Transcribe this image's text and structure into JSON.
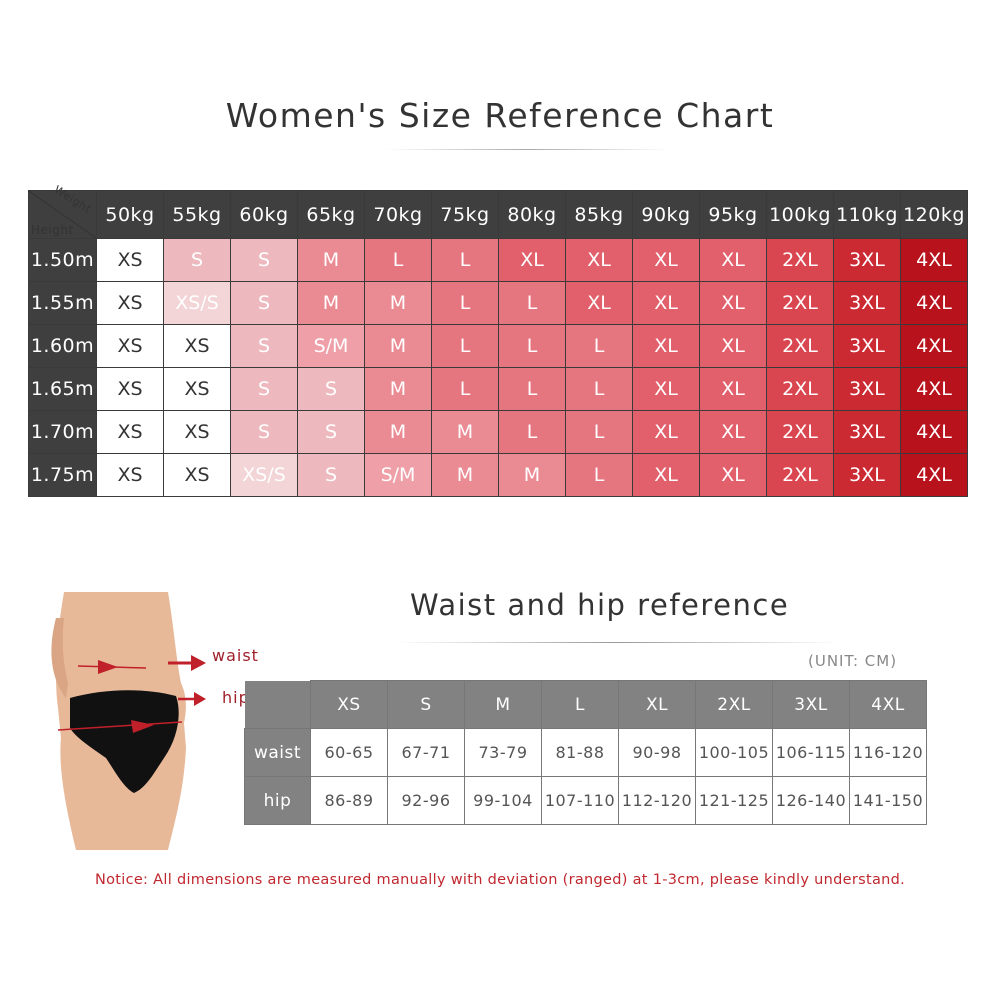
{
  "title": "Women's Size Reference Chart",
  "size_colors": {
    "XS": "#ffffff",
    "XS/S": "#f3d4d7",
    "S": "#eeb9be",
    "S/M": "#ee9fa7",
    "M": "#ea8a93",
    "L": "#e5757f",
    "XL": "#e1606b",
    "2XL": "#da4650",
    "3XL": "#cc2a33",
    "4XL": "#b8131c"
  },
  "chart_data": [
    {
      "type": "table",
      "title": "Women's Size Reference Chart",
      "corner_labels": {
        "columns": "Weight",
        "rows": "Height"
      },
      "columns": [
        "50kg",
        "55kg",
        "60kg",
        "65kg",
        "70kg",
        "75kg",
        "80kg",
        "85kg",
        "90kg",
        "95kg",
        "100kg",
        "110kg",
        "120kg"
      ],
      "rows": [
        {
          "label": "1.50m",
          "values": [
            "XS",
            "S",
            "S",
            "M",
            "L",
            "L",
            "XL",
            "XL",
            "XL",
            "XL",
            "2XL",
            "3XL",
            "4XL"
          ]
        },
        {
          "label": "1.55m",
          "values": [
            "XS",
            "XS/S",
            "S",
            "M",
            "M",
            "L",
            "L",
            "XL",
            "XL",
            "XL",
            "2XL",
            "3XL",
            "4XL"
          ]
        },
        {
          "label": "1.60m",
          "values": [
            "XS",
            "XS",
            "S",
            "S/M",
            "M",
            "L",
            "L",
            "L",
            "XL",
            "XL",
            "2XL",
            "3XL",
            "4XL"
          ]
        },
        {
          "label": "1.65m",
          "values": [
            "XS",
            "XS",
            "S",
            "S",
            "M",
            "L",
            "L",
            "L",
            "XL",
            "XL",
            "2XL",
            "3XL",
            "4XL"
          ]
        },
        {
          "label": "1.70m",
          "values": [
            "XS",
            "XS",
            "S",
            "S",
            "M",
            "M",
            "L",
            "L",
            "XL",
            "XL",
            "2XL",
            "3XL",
            "4XL"
          ]
        },
        {
          "label": "1.75m",
          "values": [
            "XS",
            "XS",
            "XS/S",
            "S",
            "S/M",
            "M",
            "M",
            "L",
            "XL",
            "XL",
            "2XL",
            "3XL",
            "4XL"
          ]
        }
      ]
    },
    {
      "type": "table",
      "title": "Waist and hip reference",
      "unit": "(UNIT: CM)",
      "columns": [
        "XS",
        "S",
        "M",
        "L",
        "XL",
        "2XL",
        "3XL",
        "4XL"
      ],
      "rows": [
        {
          "label": "waist",
          "values": [
            "60-65",
            "67-71",
            "73-79",
            "81-88",
            "90-98",
            "100-105",
            "106-115",
            "116-120"
          ]
        },
        {
          "label": "hip",
          "values": [
            "86-89",
            "92-96",
            "99-104",
            "107-110",
            "112-120",
            "121-125",
            "126-140",
            "141-150"
          ]
        }
      ]
    }
  ],
  "illustration": {
    "waist_label": "waist",
    "hip_label": "hip",
    "arrow_color": "#c0202a"
  },
  "notice": "Notice: All dimensions are measured manually with deviation (ranged) at 1-3cm, please kindly understand."
}
